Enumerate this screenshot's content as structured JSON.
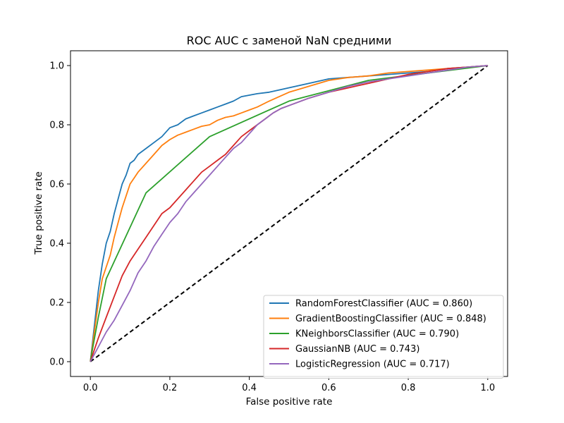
{
  "chart_data": {
    "type": "line",
    "title": "ROC AUC с заменой NaN средними",
    "xlabel": "False positive rate",
    "ylabel": "True positive rate",
    "xlim": [
      -0.05,
      1.05
    ],
    "ylim": [
      -0.05,
      1.05
    ],
    "xticks": [
      0.0,
      0.2,
      0.4,
      0.6,
      0.8,
      1.0
    ],
    "yticks": [
      0.0,
      0.2,
      0.4,
      0.6,
      0.8,
      1.0
    ],
    "xtick_labels": [
      "0.0",
      "0.2",
      "0.4",
      "0.6",
      "0.8",
      "1.0"
    ],
    "ytick_labels": [
      "0.0",
      "0.2",
      "0.4",
      "0.6",
      "0.8",
      "1.0"
    ],
    "grid": false,
    "legend_position": "lower-right",
    "diagonal": {
      "x": [
        0,
        1
      ],
      "y": [
        0,
        1
      ],
      "color": "#000000",
      "style": "dashed"
    },
    "series": [
      {
        "name": "RandomForestClassifier (AUC = 0.860)",
        "color": "#1f77b4",
        "x": [
          0,
          0.005,
          0.01,
          0.02,
          0.03,
          0.04,
          0.05,
          0.06,
          0.07,
          0.08,
          0.09,
          0.1,
          0.11,
          0.12,
          0.14,
          0.16,
          0.18,
          0.2,
          0.22,
          0.24,
          0.26,
          0.28,
          0.3,
          0.32,
          0.34,
          0.36,
          0.38,
          0.4,
          0.42,
          0.45,
          0.5,
          0.55,
          0.6,
          0.65,
          0.7,
          0.75,
          0.8,
          0.85,
          0.9,
          0.95,
          1.0
        ],
        "y": [
          0,
          0.06,
          0.12,
          0.24,
          0.33,
          0.4,
          0.44,
          0.5,
          0.55,
          0.6,
          0.63,
          0.67,
          0.68,
          0.7,
          0.72,
          0.74,
          0.76,
          0.79,
          0.8,
          0.82,
          0.83,
          0.84,
          0.85,
          0.86,
          0.87,
          0.88,
          0.895,
          0.9,
          0.905,
          0.91,
          0.925,
          0.94,
          0.955,
          0.96,
          0.965,
          0.97,
          0.975,
          0.98,
          0.99,
          0.995,
          1.0
        ]
      },
      {
        "name": "GradientBoostingClassifier (AUC = 0.848)",
        "color": "#ff7f0e",
        "x": [
          0,
          0.005,
          0.01,
          0.02,
          0.03,
          0.04,
          0.05,
          0.06,
          0.07,
          0.08,
          0.09,
          0.1,
          0.11,
          0.12,
          0.14,
          0.16,
          0.18,
          0.2,
          0.22,
          0.24,
          0.26,
          0.28,
          0.3,
          0.32,
          0.34,
          0.36,
          0.38,
          0.4,
          0.42,
          0.45,
          0.5,
          0.55,
          0.6,
          0.65,
          0.7,
          0.75,
          0.8,
          0.85,
          0.9,
          0.95,
          1.0
        ],
        "y": [
          0,
          0.05,
          0.1,
          0.2,
          0.28,
          0.32,
          0.36,
          0.42,
          0.47,
          0.52,
          0.56,
          0.6,
          0.62,
          0.64,
          0.67,
          0.7,
          0.73,
          0.75,
          0.765,
          0.775,
          0.785,
          0.795,
          0.8,
          0.815,
          0.825,
          0.83,
          0.84,
          0.85,
          0.86,
          0.88,
          0.91,
          0.93,
          0.95,
          0.96,
          0.965,
          0.975,
          0.98,
          0.985,
          0.99,
          0.995,
          1.0
        ]
      },
      {
        "name": "KNeighborsClassifier (AUC = 0.790)",
        "color": "#2ca02c",
        "x": [
          0,
          0.005,
          0.02,
          0.04,
          0.14,
          0.3,
          0.5,
          0.7,
          1.0
        ],
        "y": [
          0,
          0.04,
          0.15,
          0.28,
          0.57,
          0.76,
          0.88,
          0.95,
          1.0
        ]
      },
      {
        "name": "GaussianNB (AUC = 0.743)",
        "color": "#d62728",
        "x": [
          0,
          0.01,
          0.02,
          0.04,
          0.06,
          0.08,
          0.1,
          0.12,
          0.14,
          0.16,
          0.18,
          0.2,
          0.22,
          0.24,
          0.26,
          0.28,
          0.3,
          0.32,
          0.34,
          0.36,
          0.38,
          0.4,
          0.42,
          0.44,
          0.46,
          0.48,
          0.5,
          0.55,
          0.6,
          0.65,
          0.7,
          0.75,
          0.8,
          0.85,
          0.9,
          0.95,
          1.0
        ],
        "y": [
          0,
          0.04,
          0.08,
          0.15,
          0.22,
          0.29,
          0.34,
          0.38,
          0.42,
          0.46,
          0.5,
          0.52,
          0.55,
          0.58,
          0.61,
          0.64,
          0.66,
          0.68,
          0.7,
          0.73,
          0.76,
          0.78,
          0.8,
          0.82,
          0.84,
          0.855,
          0.865,
          0.89,
          0.91,
          0.925,
          0.94,
          0.955,
          0.97,
          0.98,
          0.99,
          0.995,
          1.0
        ]
      },
      {
        "name": "LogisticRegression (AUC = 0.717)",
        "color": "#9467bd",
        "x": [
          0,
          0.02,
          0.04,
          0.06,
          0.08,
          0.1,
          0.12,
          0.14,
          0.16,
          0.18,
          0.2,
          0.22,
          0.24,
          0.26,
          0.28,
          0.3,
          0.32,
          0.34,
          0.36,
          0.38,
          0.4,
          0.42,
          0.44,
          0.46,
          0.48,
          0.5,
          0.55,
          0.6,
          0.65,
          0.7,
          0.75,
          0.8,
          0.85,
          0.9,
          0.95,
          1.0
        ],
        "y": [
          0,
          0.05,
          0.1,
          0.14,
          0.19,
          0.24,
          0.3,
          0.34,
          0.39,
          0.43,
          0.47,
          0.5,
          0.54,
          0.57,
          0.6,
          0.63,
          0.66,
          0.69,
          0.72,
          0.74,
          0.77,
          0.8,
          0.82,
          0.84,
          0.855,
          0.865,
          0.89,
          0.91,
          0.93,
          0.945,
          0.955,
          0.965,
          0.975,
          0.985,
          0.995,
          1.0
        ]
      }
    ]
  }
}
